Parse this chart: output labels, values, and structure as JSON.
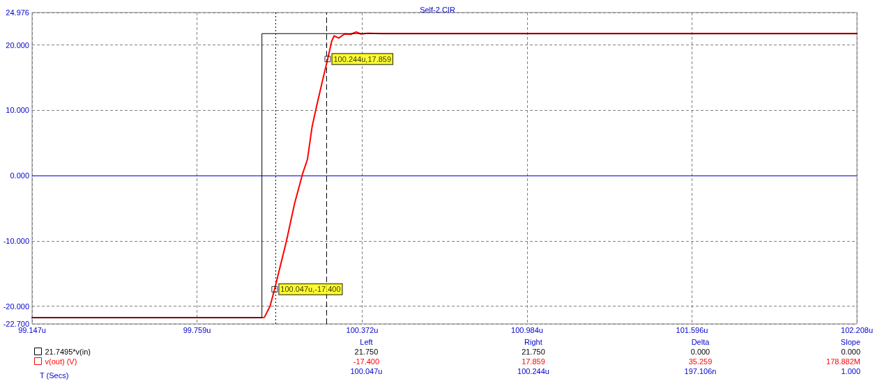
{
  "chart_data": {
    "type": "line",
    "title": "Self-2.CIR",
    "xlabel": "T (Secs)",
    "xlim": [
      99.147,
      102.208
    ],
    "xticks": [
      {
        "value": 99.147,
        "label": "99.147u"
      },
      {
        "value": 99.759,
        "label": "99.759u"
      },
      {
        "value": 100.372,
        "label": "100.372u"
      },
      {
        "value": 100.984,
        "label": "100.984u"
      },
      {
        "value": 101.596,
        "label": "101.596u"
      },
      {
        "value": 102.208,
        "label": "102.208u"
      }
    ],
    "ylim": [
      -22.7,
      24.976
    ],
    "yticks": [
      {
        "value": -22.7,
        "label": "-22.700"
      },
      {
        "value": -20,
        "label": "-20.000"
      },
      {
        "value": -10,
        "label": "-10.000"
      },
      {
        "value": 0,
        "label": "0.000"
      },
      {
        "value": 10,
        "label": "10.000"
      },
      {
        "value": 20,
        "label": "20.000"
      },
      {
        "value": 24.976,
        "label": "24.976"
      }
    ],
    "grid": true,
    "legend": "bottom left",
    "line_style": "solid",
    "marker": "none",
    "series": [
      {
        "name": "21.7495*v(in)",
        "color": "#000000",
        "x": [
          99.147,
          100.0,
          100.0,
          102.208
        ],
        "values": [
          -21.75,
          -21.75,
          21.75,
          21.75
        ]
      },
      {
        "name": "v(out) (V)",
        "color": "#ff0000",
        "x": [
          99.147,
          100.0,
          100.009,
          100.03,
          100.047,
          100.091,
          100.121,
          100.151,
          100.169,
          100.186,
          100.203,
          100.225,
          100.244,
          100.259,
          100.268,
          100.285,
          100.307,
          100.329,
          100.35,
          100.367,
          100.393,
          100.45,
          102.208
        ],
        "values": [
          -21.75,
          -21.75,
          -21.7,
          -20.0,
          -17.4,
          -10.0,
          -4.3,
          0.3,
          2.5,
          7.45,
          10.66,
          14.58,
          17.859,
          20.6,
          21.4,
          21.07,
          21.7,
          21.64,
          22.0,
          21.7,
          21.8,
          21.75,
          21.75
        ]
      }
    ],
    "ref_lines": [
      {
        "axis": "x",
        "value": 100.047,
        "color": "#000000",
        "line_style": "dotted"
      },
      {
        "axis": "x",
        "value": 100.244,
        "color": "#000000",
        "line_style": "dashed"
      },
      {
        "axis": "y",
        "value": 0,
        "color": "#0000cc",
        "line_style": "solid"
      }
    ],
    "annotations": [
      {
        "text": "100.047u,-17.400",
        "x": 100.047,
        "y": -17.4
      },
      {
        "text": "100.244u,17.859",
        "x": 100.244,
        "y": 17.859
      },
      "Left",
      "Right",
      "Delta",
      "Slope",
      "21.750",
      "21.750",
      "0.000",
      "0.000",
      "-17.400",
      "17.859",
      "35.259",
      "178.882M",
      "100.047u",
      "100.244u",
      "197.106n",
      "1.000"
    ]
  }
}
